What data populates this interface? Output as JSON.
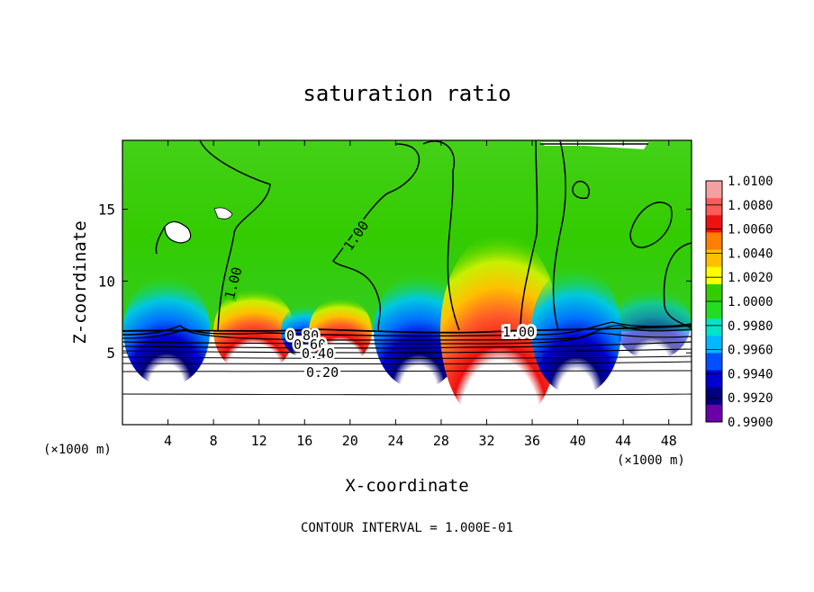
{
  "chart_data": {
    "type": "heatmap",
    "title": "saturation ratio",
    "xlabel": "X-coordinate",
    "ylabel": "Z-coordinate",
    "x_unit": "(×1000 m)",
    "y_unit": "(×1000 m)",
    "x_ticks": [
      "4",
      "8",
      "12",
      "16",
      "20",
      "24",
      "28",
      "32",
      "36",
      "40",
      "44",
      "48"
    ],
    "y_ticks": [
      "5",
      "10",
      "15"
    ],
    "xlim": [
      0,
      50
    ],
    "ylim": [
      0,
      19.8
    ],
    "colorbar": {
      "levels": [
        "1.0100",
        "1.0080",
        "1.0060",
        "1.0040",
        "1.0020",
        "1.0000",
        "0.9980",
        "0.9960",
        "0.9940",
        "0.9920",
        "0.9900"
      ],
      "colors": [
        "#f4a0a0",
        "#ff5a5a",
        "#ee1111",
        "#ff7f00",
        "#ffc000",
        "#ffff00",
        "#33cc00",
        "#22dd22",
        "#00e5c8",
        "#00b8ff",
        "#0050ff",
        "#0000d0",
        "#000080",
        "#6a00a8"
      ]
    },
    "contour_labels": [
      "1.00",
      "1.00",
      "1.00",
      "0.80",
      "0.60",
      "0.40",
      "0.20"
    ],
    "footer": "CONTOUR INTERVAL = 1.000E-01"
  },
  "colors": {
    "background": "#33cc33",
    "border": "#000000"
  }
}
